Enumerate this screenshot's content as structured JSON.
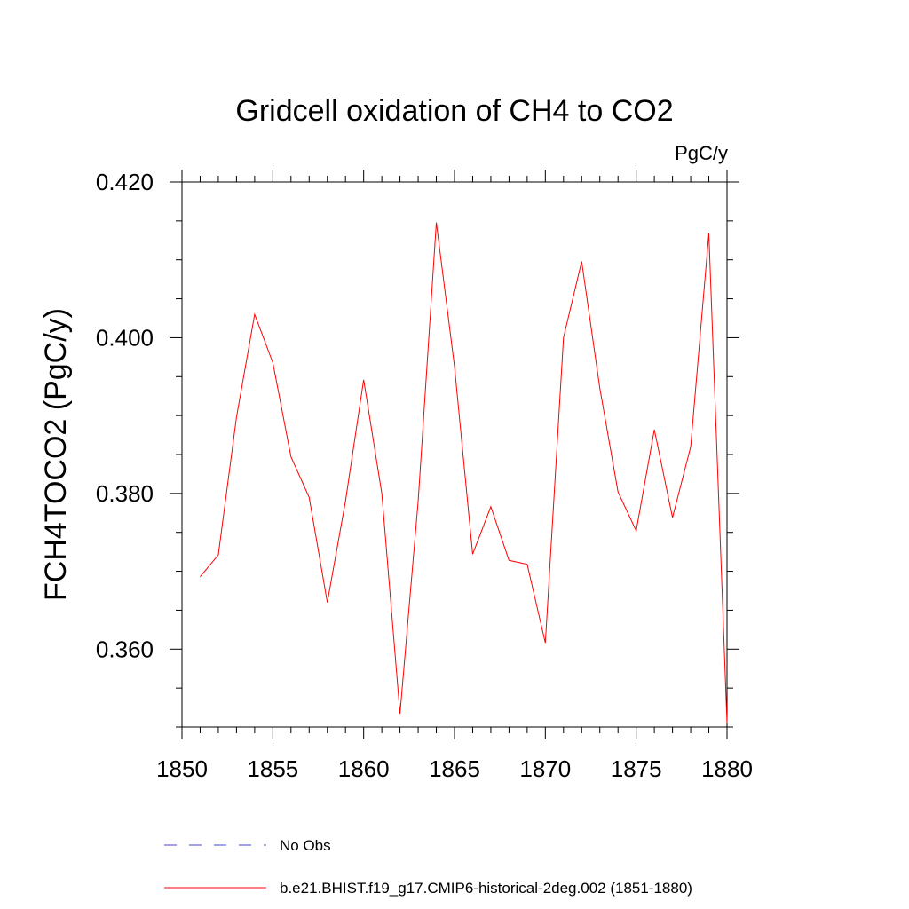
{
  "chart_data": {
    "type": "line",
    "title": "Gridcell oxidation of CH4 to CO2",
    "units": "PgC/y",
    "ylabel": "FCH4TOCO2  (PgC/y)",
    "xlabel": "",
    "xlim": [
      1850,
      1880
    ],
    "ylim": [
      0.35,
      0.42
    ],
    "x_ticks": [
      1850,
      1855,
      1860,
      1865,
      1870,
      1875,
      1880
    ],
    "x_tick_labels": [
      "1850",
      "1855",
      "1860",
      "1865",
      "1870",
      "1875",
      "1880"
    ],
    "y_ticks": [
      0.36,
      0.38,
      0.4,
      0.42
    ],
    "y_tick_labels": [
      "0.360",
      "0.380",
      "0.400",
      "0.420"
    ],
    "y_minor_step": 0.005,
    "x_minor_step": 1,
    "grid": false,
    "legend_placement": "bottom",
    "series": [
      {
        "name": "b.e21.BHIST.f19_g17.CMIP6-historical-2deg.002 (1851-1880)",
        "color": "#ff0000",
        "style": "solid",
        "x": [
          1851,
          1852,
          1853,
          1854,
          1855,
          1856,
          1857,
          1858,
          1859,
          1860,
          1861,
          1862,
          1863,
          1864,
          1865,
          1866,
          1867,
          1868,
          1869,
          1870,
          1871,
          1872,
          1873,
          1874,
          1875,
          1876,
          1877,
          1878,
          1879,
          1880
        ],
        "y": [
          0.3693,
          0.3721,
          0.3898,
          0.403,
          0.3968,
          0.3847,
          0.3795,
          0.366,
          0.379,
          0.3946,
          0.38,
          0.3517,
          0.379,
          0.4148,
          0.3963,
          0.3722,
          0.3783,
          0.3714,
          0.3709,
          0.3608,
          0.4,
          0.4098,
          0.3935,
          0.3802,
          0.3752,
          0.3882,
          0.3769,
          0.386,
          0.4134,
          0.3505
        ]
      }
    ],
    "legend": [
      {
        "label": "No Obs",
        "color": "#4444cc",
        "style": "dashed"
      },
      {
        "label": "b.e21.BHIST.f19_g17.CMIP6-historical-2deg.002 (1851-1880)",
        "color": "#ff0000",
        "style": "solid"
      }
    ]
  }
}
